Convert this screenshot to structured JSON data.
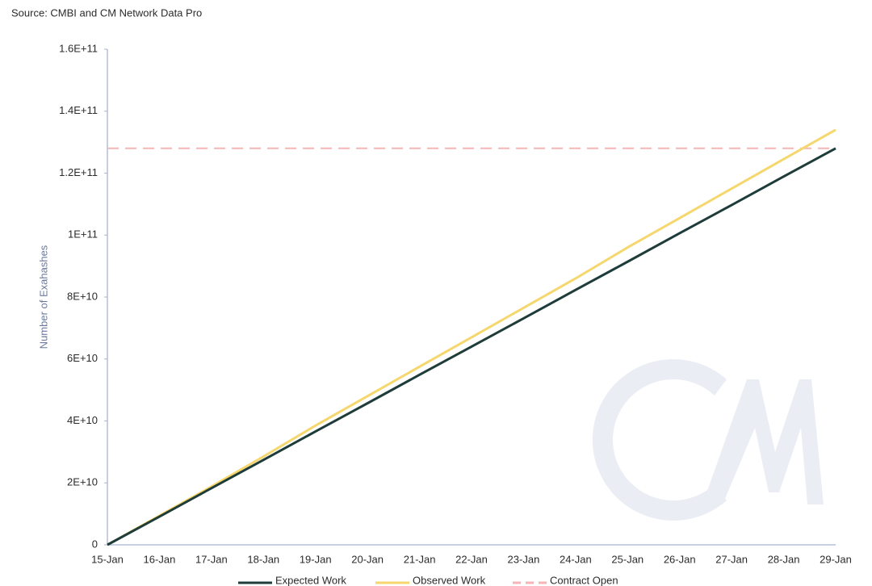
{
  "chart_data": {
    "type": "line",
    "source": "Source: CMBI and CM Network Data Pro",
    "y_label": "Number of Exahashes",
    "categories": [
      "15-Jan",
      "16-Jan",
      "17-Jan",
      "18-Jan",
      "19-Jan",
      "20-Jan",
      "21-Jan",
      "22-Jan",
      "23-Jan",
      "24-Jan",
      "25-Jan",
      "26-Jan",
      "27-Jan",
      "28-Jan",
      "29-Jan"
    ],
    "series": [
      {
        "name": "Expected Work",
        "color": "#1d3c3a",
        "dashed": false,
        "values": [
          0,
          9100000000,
          18300000000,
          27400000000,
          36600000000,
          45700000000,
          54900000000,
          64000000000,
          73100000000,
          82300000000,
          91400000000,
          100600000000,
          109700000000,
          118900000000,
          128000000000
        ]
      },
      {
        "name": "Observed Work",
        "color": "#f5d76e",
        "dashed": false,
        "values": [
          0,
          9400000000,
          18800000000,
          28500000000,
          38500000000,
          48000000000,
          57500000000,
          67000000000,
          76500000000,
          86000000000,
          96000000000,
          105500000000,
          115000000000,
          124500000000,
          134000000000
        ]
      },
      {
        "name": "Contract Open",
        "color": "#f4b6b6",
        "dashed": true,
        "values": [
          128000000000,
          128000000000,
          128000000000,
          128000000000,
          128000000000,
          128000000000,
          128000000000,
          128000000000,
          128000000000,
          128000000000,
          128000000000,
          128000000000,
          128000000000,
          128000000000,
          128000000000
        ]
      }
    ],
    "ylim": [
      0,
      160000000000
    ],
    "yticks": [
      0,
      {
        "value": 20000000000,
        "label": "2E+10"
      },
      {
        "value": 40000000000,
        "label": "4E+10"
      },
      {
        "value": 60000000000,
        "label": "6E+10"
      },
      {
        "value": 80000000000,
        "label": "8E+10"
      },
      {
        "value": 100000000000,
        "label": "1E+11"
      },
      {
        "value": 120000000000,
        "label": "1.2E+11"
      },
      {
        "value": 140000000000,
        "label": "1.4E+11"
      },
      {
        "value": 160000000000,
        "label": "1.6E+11"
      }
    ],
    "grid": false
  }
}
